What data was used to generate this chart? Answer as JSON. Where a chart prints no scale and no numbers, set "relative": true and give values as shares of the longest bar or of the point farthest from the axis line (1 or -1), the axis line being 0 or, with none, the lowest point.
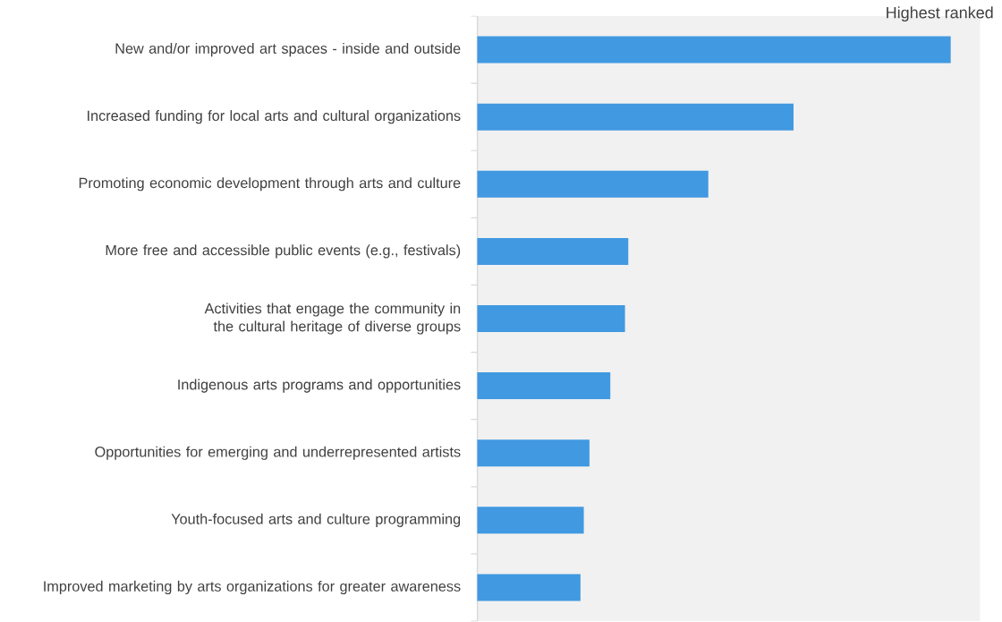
{
  "chart_data": {
    "type": "bar",
    "orientation": "horizontal",
    "relative": true,
    "categories": [
      "New and/or improved art spaces - inside and outside",
      "Increased funding for local arts and cultural organizations",
      "Promoting economic development through arts and culture",
      "More free and accessible public events (e.g., festivals)",
      "Activities that engage the community in the cultural heritage of diverse groups",
      "Indigenous arts programs and opportunities",
      "Opportunities for emerging and underrepresented artists",
      "Youth-focused arts and culture programming",
      "Improved marketing by arts organizations for greater awareness"
    ],
    "values": [
      1,
      0.668,
      0.488,
      0.319,
      0.312,
      0.281,
      0.237,
      0.225,
      0.218
    ],
    "color": "#4199e1",
    "annotations": [
      "Highest ranked"
    ]
  }
}
